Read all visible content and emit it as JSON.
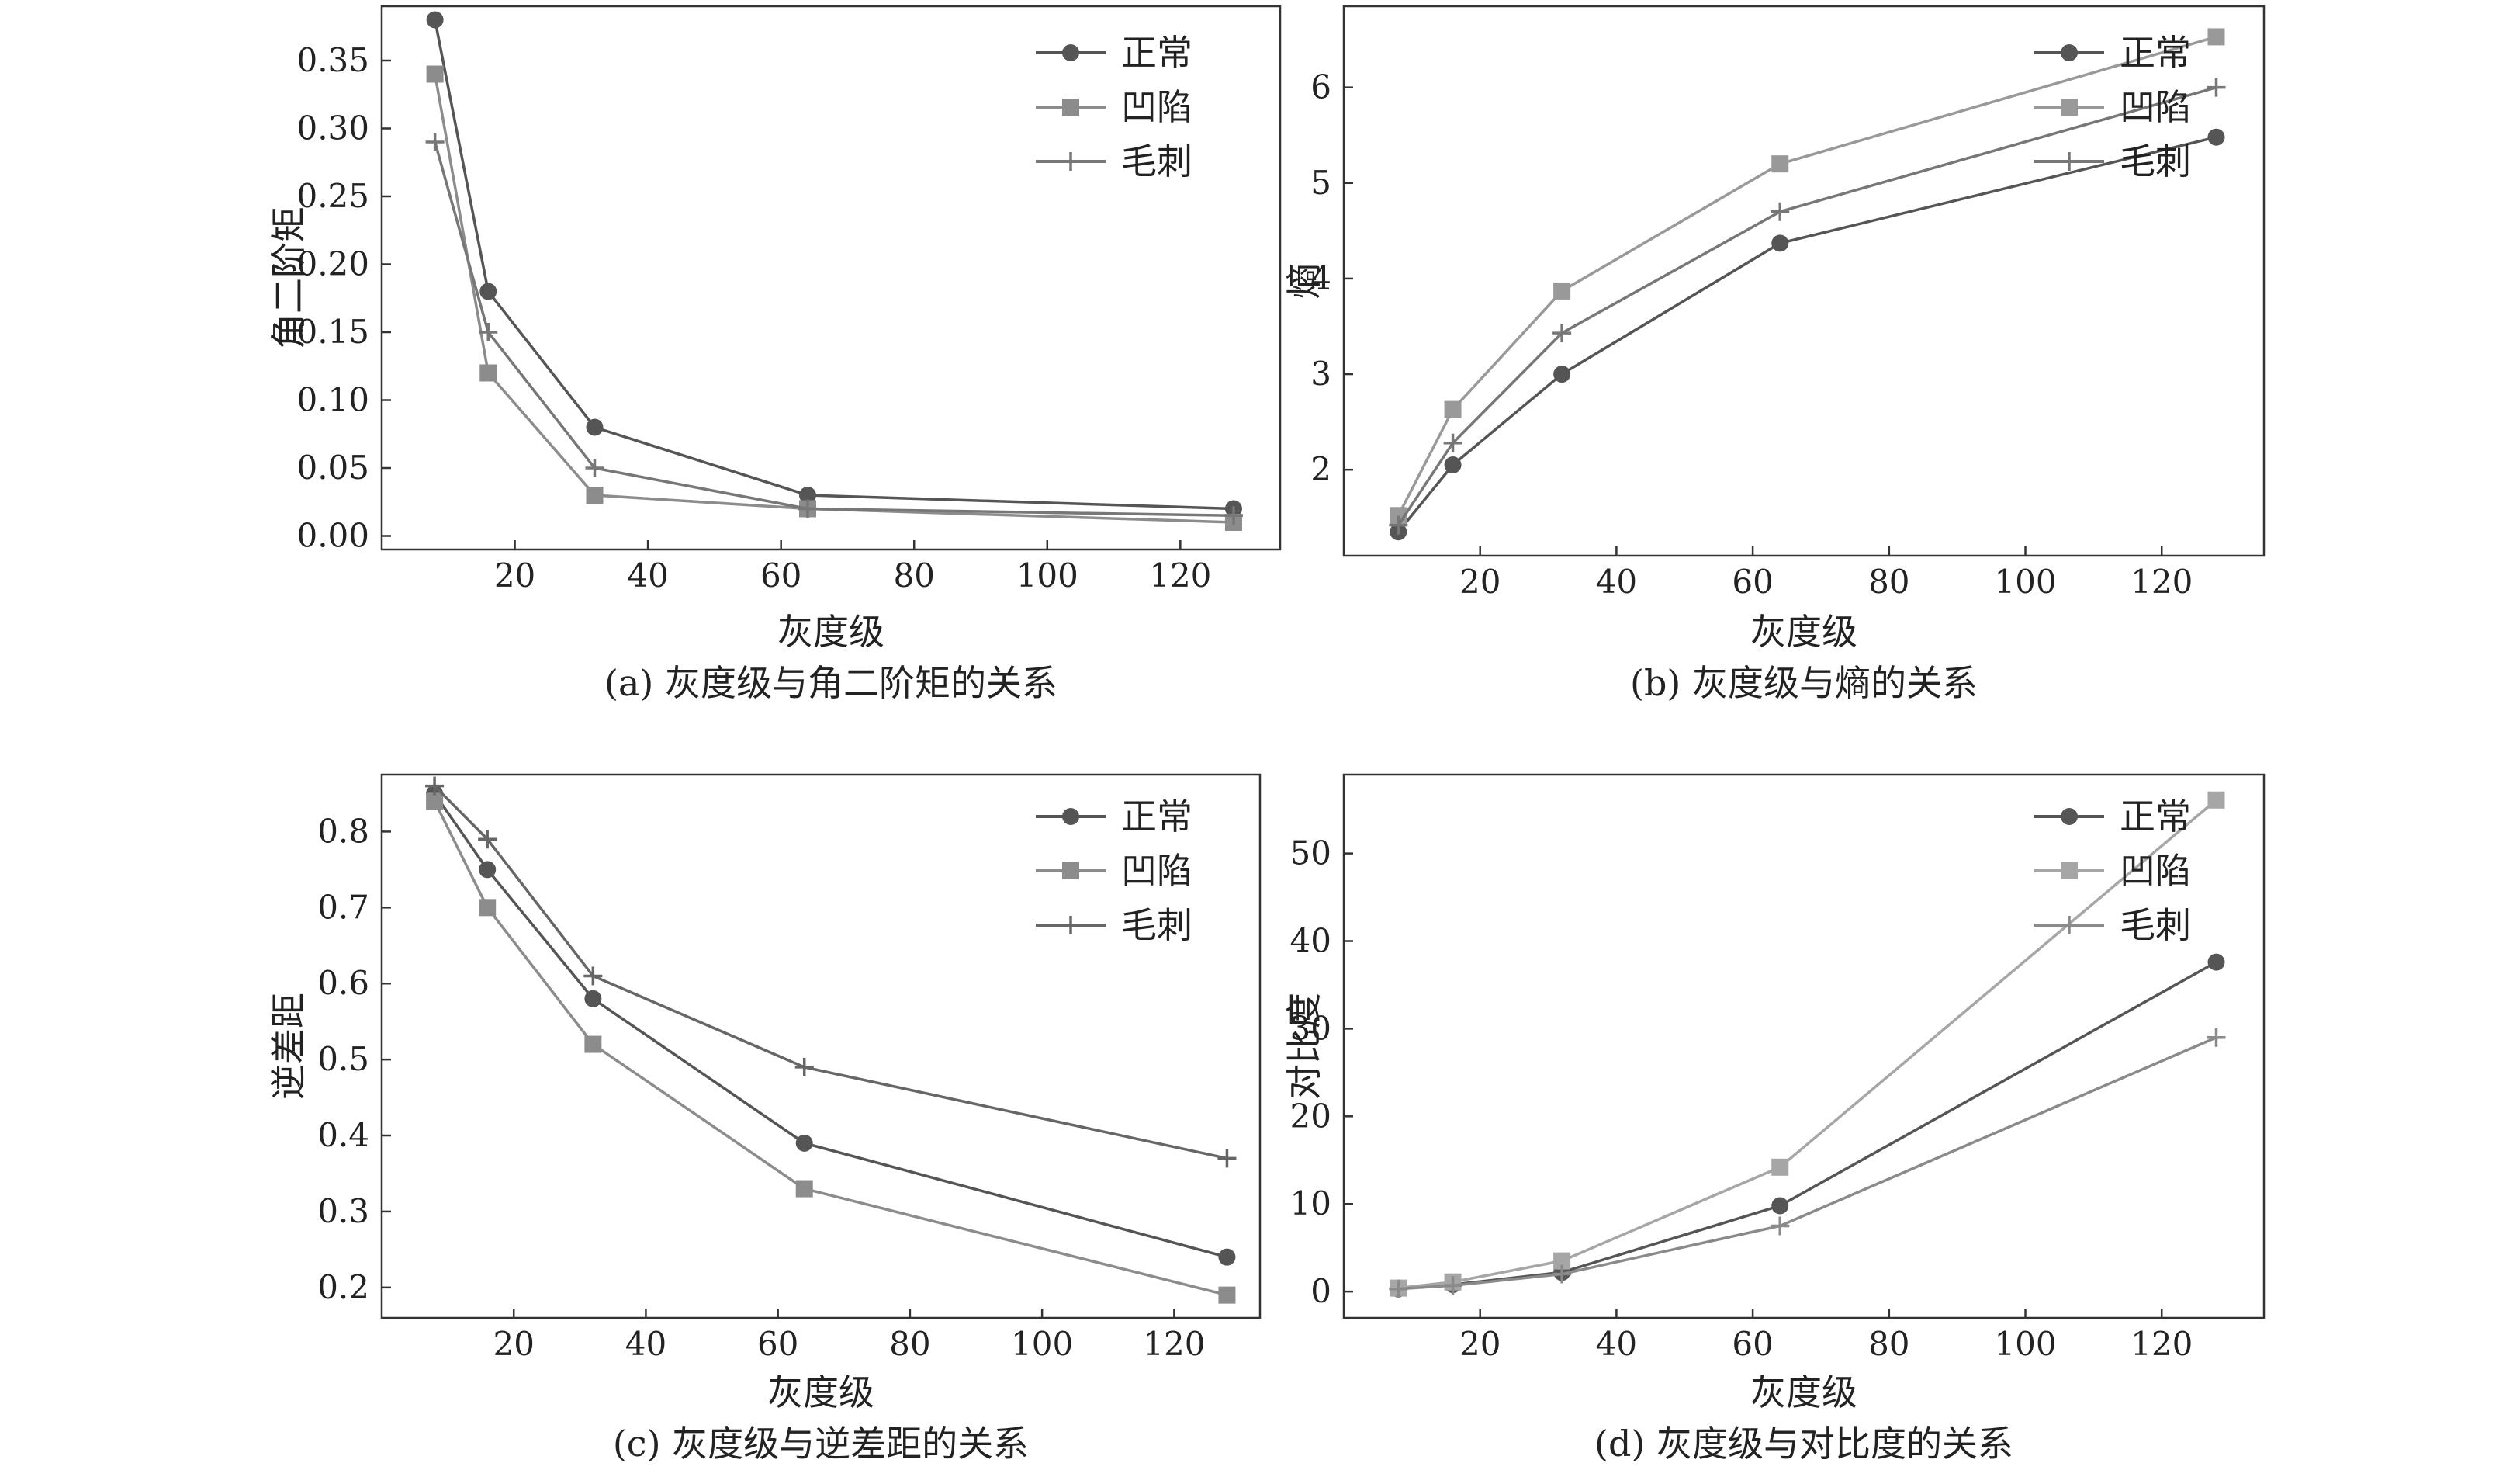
{
  "chart_data": [
    {
      "type": "line",
      "caption": "(a) 灰度级与角二阶矩的关系",
      "xlabel": "灰度级",
      "ylabel": "角二阶矩",
      "x": [
        8,
        16,
        32,
        64,
        128
      ],
      "xlim": [
        0,
        135
      ],
      "ylim": [
        -0.01,
        0.39
      ],
      "xticks": [
        20,
        40,
        60,
        80,
        100,
        120
      ],
      "yticks": [
        0.0,
        0.05,
        0.1,
        0.15,
        0.2,
        0.25,
        0.3,
        0.35
      ],
      "ytick_decimals": 2,
      "legend_position": "top-right",
      "series": [
        {
          "name": "正常",
          "marker": "circle",
          "color": "#555555",
          "values": [
            0.38,
            0.18,
            0.08,
            0.03,
            0.02
          ]
        },
        {
          "name": "凹陷",
          "marker": "square",
          "color": "#8c8c8c",
          "values": [
            0.34,
            0.12,
            0.03,
            0.02,
            0.01
          ]
        },
        {
          "name": "毛刺",
          "marker": "plus",
          "color": "#777777",
          "values": [
            0.29,
            0.15,
            0.05,
            0.02,
            0.015
          ]
        }
      ]
    },
    {
      "type": "line",
      "caption": "(b) 灰度级与熵的关系",
      "xlabel": "灰度级",
      "ylabel": "熵",
      "x": [
        8,
        16,
        32,
        64,
        128
      ],
      "xlim": [
        0,
        135
      ],
      "ylim": [
        1.1,
        6.85
      ],
      "xticks": [
        20,
        40,
        60,
        80,
        100,
        120
      ],
      "yticks": [
        2,
        3,
        4,
        5,
        6
      ],
      "ytick_decimals": 0,
      "legend_position": "top-right",
      "series": [
        {
          "name": "正常",
          "marker": "circle",
          "color": "#555555",
          "values": [
            1.35,
            2.05,
            3.0,
            4.37,
            5.48
          ]
        },
        {
          "name": "凹陷",
          "marker": "square",
          "color": "#999999",
          "values": [
            1.52,
            2.63,
            3.87,
            5.2,
            6.53
          ]
        },
        {
          "name": "毛刺",
          "marker": "plus",
          "color": "#777777",
          "values": [
            1.42,
            2.28,
            3.43,
            4.7,
            6.0
          ]
        }
      ]
    },
    {
      "type": "line",
      "caption": "(c) 灰度级与逆差距的关系",
      "xlabel": "灰度级",
      "ylabel": "逆差距",
      "x": [
        8,
        16,
        32,
        64,
        128
      ],
      "xlim": [
        0,
        133
      ],
      "ylim": [
        0.16,
        0.875
      ],
      "xticks": [
        20,
        40,
        60,
        80,
        100,
        120
      ],
      "yticks": [
        0.2,
        0.3,
        0.4,
        0.5,
        0.6,
        0.7,
        0.8
      ],
      "ytick_decimals": 1,
      "legend_position": "top-right",
      "series": [
        {
          "name": "正常",
          "marker": "circle",
          "color": "#555555",
          "values": [
            0.85,
            0.75,
            0.58,
            0.39,
            0.24
          ]
        },
        {
          "name": "凹陷",
          "marker": "square",
          "color": "#8c8c8c",
          "values": [
            0.84,
            0.7,
            0.52,
            0.33,
            0.19
          ]
        },
        {
          "name": "毛刺",
          "marker": "plus",
          "color": "#666666",
          "values": [
            0.86,
            0.79,
            0.61,
            0.49,
            0.37
          ]
        }
      ]
    },
    {
      "type": "line",
      "caption": "(d) 灰度级与对比度的关系",
      "xlabel": "灰度级",
      "ylabel": "对比度",
      "x": [
        8,
        16,
        32,
        64,
        128
      ],
      "xlim": [
        0,
        135
      ],
      "ylim": [
        -3,
        59
      ],
      "xticks": [
        20,
        40,
        60,
        80,
        100,
        120
      ],
      "yticks": [
        0,
        10,
        20,
        30,
        40,
        50
      ],
      "ytick_decimals": 0,
      "legend_position": "top-right",
      "series": [
        {
          "name": "正常",
          "marker": "circle",
          "color": "#555555",
          "values": [
            0.3,
            0.8,
            2.2,
            9.8,
            37.6
          ]
        },
        {
          "name": "凹陷",
          "marker": "square",
          "color": "#a6a6a6",
          "values": [
            0.4,
            1.1,
            3.5,
            14.2,
            56.1
          ]
        },
        {
          "name": "毛刺",
          "marker": "plus",
          "color": "#8a8a8a",
          "values": [
            0.3,
            0.7,
            2.0,
            7.5,
            29.0
          ]
        }
      ]
    }
  ]
}
